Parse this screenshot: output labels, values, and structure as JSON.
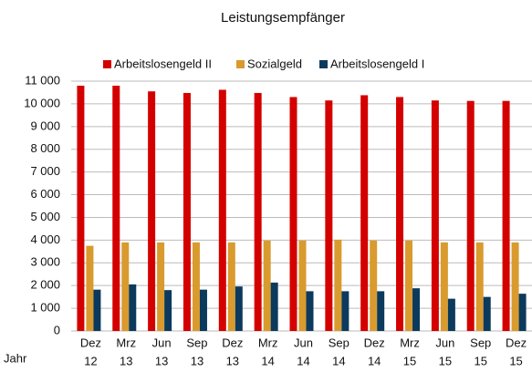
{
  "chart_data": {
    "type": "bar",
    "title": "Leistungsempfänger",
    "x_label": "Jahr",
    "categories": [
      [
        "Dez",
        "12"
      ],
      [
        "Mrz",
        "13"
      ],
      [
        "Jun",
        "13"
      ],
      [
        "Sep",
        "13"
      ],
      [
        "Dez",
        "13"
      ],
      [
        "Mrz",
        "14"
      ],
      [
        "Jun",
        "14"
      ],
      [
        "Sep",
        "14"
      ],
      [
        "Dez",
        "14"
      ],
      [
        "Mrz",
        "15"
      ],
      [
        "Jun",
        "15"
      ],
      [
        "Sep",
        "15"
      ],
      [
        "Dez",
        "15"
      ]
    ],
    "series": [
      {
        "name": "Arbeitslosengeld II",
        "color": "#d40000",
        "values": [
          10800,
          10800,
          10550,
          10480,
          10620,
          10480,
          10300,
          10150,
          10380,
          10300,
          10150,
          10130,
          10130
        ]
      },
      {
        "name": "Sozialgeld",
        "color": "#d99a2e",
        "values": [
          3750,
          3900,
          3900,
          3900,
          3900,
          3980,
          3980,
          4020,
          3980,
          3980,
          3900,
          3900,
          3900
        ]
      },
      {
        "name": "Arbeitslosengeld I",
        "color": "#0b3a5c",
        "values": [
          1820,
          2050,
          1800,
          1820,
          1960,
          2130,
          1750,
          1750,
          1750,
          1880,
          1420,
          1500,
          1640
        ]
      }
    ],
    "ylim": [
      0,
      11000
    ],
    "yticks": [
      0,
      {
        "value": 1000,
        "label": "1 000"
      },
      {
        "value": 2000,
        "label": "2 000"
      },
      {
        "value": 3000,
        "label": "3 000"
      },
      {
        "value": 4000,
        "label": "4 000"
      },
      {
        "value": 5000,
        "label": "5 000"
      },
      {
        "value": 6000,
        "label": "6 000"
      },
      {
        "value": 7000,
        "label": "7 000"
      },
      {
        "value": 8000,
        "label": "8 000"
      },
      {
        "value": 9000,
        "label": "9 000"
      },
      {
        "value": 10000,
        "label": "10 000"
      },
      {
        "value": 11000,
        "label": "11 000"
      }
    ],
    "grid": true,
    "legend": "top"
  }
}
